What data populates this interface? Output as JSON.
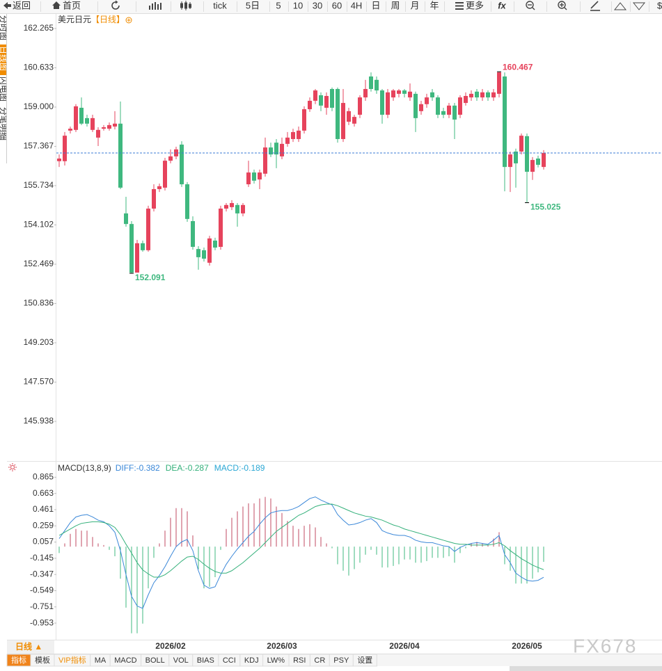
{
  "toolbar": {
    "back": "返回",
    "home": "首页",
    "tick": "tick",
    "periods": [
      "5日",
      "5",
      "10",
      "30",
      "60",
      "4H",
      "日",
      "周",
      "月",
      "年"
    ],
    "more": "更多",
    "fx": "fx",
    "currency": "$"
  },
  "side_tabs": [
    "分时图",
    "日线图",
    "闪电图",
    "分笔明细"
  ],
  "chart_data": [
    {
      "type": "candlestick",
      "title": "美元日元",
      "period": "【日线】",
      "up_color": "#e6435c",
      "down_color": "#3fb87f",
      "current_line_color": "#3a7bd5",
      "categories": [
        null,
        null,
        null,
        null,
        null,
        null,
        null,
        null,
        null,
        null,
        null,
        null,
        null,
        null,
        null,
        null,
        null,
        null,
        null,
        null,
        "2026/02",
        null,
        null,
        null,
        null,
        null,
        null,
        null,
        null,
        null,
        null,
        null,
        null,
        null,
        null,
        null,
        null,
        null,
        null,
        null,
        "2026/03",
        null,
        null,
        null,
        null,
        null,
        null,
        null,
        null,
        null,
        null,
        null,
        null,
        null,
        null,
        null,
        null,
        null,
        null,
        null,
        null,
        null,
        "2026/04",
        null,
        null,
        null,
        null,
        null,
        null,
        null,
        null,
        null,
        null,
        null,
        null,
        null,
        null,
        null,
        null,
        null,
        null,
        null,
        null,
        null,
        "2026/05",
        null,
        null,
        null
      ],
      "open": [
        156.75,
        156.75,
        158.02,
        158.05,
        158.97,
        158.54,
        158.05,
        157.73,
        158.1,
        158.1,
        158.19,
        158.31,
        154.58,
        154.14,
        152.12,
        153.34,
        153.05,
        154.78,
        155.59,
        155.65,
        156.77,
        156.95,
        157.44,
        155.79,
        154.26,
        153.1,
        153.05,
        152.53,
        153.45,
        153.19,
        154.78,
        154.84,
        154.93,
        154.58,
        155.79,
        156.28,
        155.99,
        156.23,
        157.32,
        157.52,
        156.95,
        157.47,
        157.67,
        157.67,
        158.02,
        158.91,
        159.26,
        159.49,
        158.97,
        159.75,
        159.75,
        157.67,
        158.39,
        158.31,
        158.68,
        159.4,
        160.27,
        160.13,
        159.69,
        158.68,
        159.4,
        159.55,
        159.69,
        159.4,
        159.55,
        158.83,
        159.12,
        159.61,
        159.4,
        158.83,
        158.68,
        159.06,
        158.68,
        159.17,
        159.4,
        159.64,
        159.4,
        159.61,
        159.4,
        159.55,
        160.27,
        156.51,
        157.15,
        157.15,
        157.79,
        156.31,
        156.86,
        156.51
      ],
      "high": [
        157.03,
        157.96,
        158.19,
        159.12,
        159.4,
        158.68,
        158.68,
        158.16,
        158.25,
        158.36,
        158.83,
        159.23,
        155.27,
        154.26,
        153.48,
        153.45,
        154.9,
        155.79,
        155.82,
        156.89,
        157.24,
        157.35,
        157.58,
        155.88,
        154.46,
        153.22,
        153.16,
        153.65,
        153.57,
        154.9,
        155.01,
        155.13,
        155.01,
        155.01,
        156.77,
        156.4,
        156.4,
        157.73,
        157.52,
        157.67,
        157.73,
        157.96,
        158.1,
        158.19,
        159.03,
        159.4,
        159.75,
        159.61,
        159.61,
        159.81,
        159.81,
        159.75,
        158.97,
        158.68,
        159.49,
        160.13,
        160.44,
        160.27,
        159.75,
        159.75,
        159.75,
        159.75,
        159.75,
        159.98,
        159.64,
        159.26,
        159.55,
        159.75,
        159.49,
        158.97,
        159.17,
        159.17,
        159.49,
        159.61,
        159.69,
        159.75,
        159.75,
        159.69,
        159.75,
        160.467,
        160.44,
        157.15,
        157.27,
        157.9,
        157.9,
        156.92,
        156.98,
        157.21
      ],
      "low": [
        156.51,
        156.57,
        157.9,
        157.96,
        158.25,
        158.19,
        157.96,
        157.38,
        158.02,
        158.02,
        158.07,
        155.59,
        154.03,
        152.091,
        152.12,
        152.99,
        152.99,
        154.66,
        155.47,
        155.53,
        156.66,
        156.83,
        155.68,
        154.23,
        153.07,
        152.24,
        152.58,
        152.41,
        153.05,
        153.07,
        154.66,
        154.72,
        154.03,
        154.46,
        155.68,
        155.82,
        155.59,
        156.11,
        156.92,
        156.46,
        156.83,
        157.35,
        157.55,
        157.55,
        157.9,
        158.8,
        159.12,
        158.83,
        158.68,
        158.83,
        157.52,
        157.55,
        158.25,
        158.19,
        158.54,
        159.26,
        159.64,
        159.55,
        158.31,
        158.54,
        159.26,
        159.4,
        159.4,
        159.26,
        157.96,
        158.68,
        158.97,
        159.26,
        158.54,
        158.54,
        158.54,
        157.67,
        158.54,
        159.06,
        159.26,
        159.26,
        159.26,
        159.26,
        159.26,
        159.4,
        155.5,
        155.47,
        155.65,
        157.03,
        155.025,
        155.97,
        156.49,
        156.4
      ],
      "close": [
        156.86,
        157.81,
        158.1,
        159.03,
        158.31,
        158.31,
        158.54,
        158.05,
        158.16,
        158.25,
        158.31,
        155.65,
        154.14,
        152.12,
        153.34,
        153.05,
        154.78,
        155.59,
        155.71,
        156.77,
        156.95,
        157.24,
        155.79,
        154.35,
        153.19,
        152.76,
        152.7,
        153.54,
        153.16,
        154.78,
        154.93,
        155.01,
        154.58,
        154.93,
        156.28,
        155.94,
        156.28,
        157.32,
        157.03,
        157.03,
        157.47,
        157.73,
        157.96,
        158.02,
        158.91,
        159.26,
        159.69,
        159.06,
        159.46,
        158.97,
        157.67,
        159.17,
        158.83,
        158.59,
        159.4,
        159.75,
        159.75,
        159.69,
        158.68,
        159.61,
        159.69,
        159.69,
        159.55,
        159.64,
        158.54,
        159.12,
        159.4,
        159.4,
        158.68,
        158.68,
        159.06,
        158.48,
        159.4,
        159.46,
        159.55,
        159.4,
        159.61,
        159.4,
        159.61,
        160.44,
        156.51,
        157.03,
        156.66,
        157.81,
        156.31,
        156.8,
        156.6,
        157.09
      ],
      "ylim": [
        144.32,
        162.87
      ],
      "yticks": [
        162.265,
        160.633,
        {
          "value": 159,
          "label": "159.000"
        },
        157.367,
        155.734,
        154.102,
        152.469,
        150.836,
        149.203,
        {
          "value": 147.57,
          "label": "147.570"
        },
        145.938
      ]
    },
    {
      "type": "macd",
      "title": "MACD(13,8,9)",
      "series": [
        {
          "name": "DIFF:",
          "color": "#3a87d8",
          "values": [
            0.1,
            0.2,
            0.3,
            0.37,
            0.39,
            0.4,
            0.37,
            0.33,
            0.31,
            0.26,
            0.18,
            -0.05,
            -0.35,
            -0.62,
            -0.74,
            -0.77,
            -0.6,
            -0.45,
            -0.36,
            -0.25,
            -0.12,
            0.0,
            0.06,
            0.09,
            -0.05,
            -0.3,
            -0.48,
            -0.52,
            -0.5,
            -0.35,
            -0.22,
            -0.12,
            -0.03,
            0.05,
            0.13,
            0.19,
            0.28,
            0.36,
            0.42,
            0.44,
            0.45,
            0.45,
            0.47,
            0.5,
            0.55,
            0.6,
            0.62,
            0.58,
            0.55,
            0.52,
            0.4,
            0.33,
            0.27,
            0.28,
            0.3,
            0.33,
            0.35,
            0.3,
            0.2,
            0.17,
            0.15,
            0.14,
            0.14,
            0.12,
            0.08,
            0.06,
            0.05,
            0.05,
            0.03,
            0.01,
            0.0,
            -0.06,
            -0.01,
            0.02,
            0.04,
            0.05,
            0.04,
            0.03,
            0.08,
            0.14,
            -0.1,
            -0.2,
            -0.33,
            -0.38,
            -0.42,
            -0.43,
            -0.42,
            -0.382
          ]
        },
        {
          "name": "DEA:",
          "color": "#33b07a",
          "values": [
            0.14,
            0.18,
            0.22,
            0.26,
            0.29,
            0.3,
            0.31,
            0.31,
            0.3,
            0.28,
            0.24,
            0.15,
            0.03,
            -0.08,
            -0.2,
            -0.29,
            -0.34,
            -0.38,
            -0.38,
            -0.35,
            -0.3,
            -0.24,
            -0.18,
            -0.13,
            -0.12,
            -0.16,
            -0.22,
            -0.27,
            -0.31,
            -0.33,
            -0.33,
            -0.3,
            -0.25,
            -0.2,
            -0.14,
            -0.08,
            -0.02,
            0.05,
            0.12,
            0.19,
            0.24,
            0.29,
            0.34,
            0.39,
            0.42,
            0.46,
            0.5,
            0.52,
            0.53,
            0.53,
            0.51,
            0.48,
            0.45,
            0.42,
            0.4,
            0.38,
            0.37,
            0.35,
            0.33,
            0.3,
            0.27,
            0.25,
            0.22,
            0.2,
            0.18,
            0.16,
            0.14,
            0.12,
            0.1,
            0.08,
            0.06,
            0.04,
            0.03,
            0.03,
            0.02,
            0.02,
            0.02,
            0.02,
            0.03,
            0.05,
            0.01,
            -0.05,
            -0.1,
            -0.15,
            -0.19,
            -0.23,
            -0.26,
            -0.287
          ]
        }
      ],
      "histogram": {
        "name": "MACD:",
        "color": "#2aa7d4",
        "up_color": "#c24a62",
        "down_color": "#3fb87f",
        "values": [
          -0.08,
          0.04,
          0.16,
          0.22,
          0.2,
          0.2,
          0.12,
          0.04,
          0.02,
          -0.04,
          -0.12,
          -0.4,
          -0.76,
          -1.08,
          -1.08,
          -0.96,
          -0.52,
          -0.14,
          0.04,
          0.2,
          0.36,
          0.48,
          0.48,
          0.44,
          0.14,
          -0.28,
          -0.52,
          -0.5,
          -0.38,
          -0.04,
          0.22,
          0.36,
          0.44,
          0.5,
          0.54,
          0.54,
          0.6,
          0.62,
          0.6,
          0.5,
          0.42,
          0.32,
          0.26,
          0.22,
          0.26,
          0.28,
          0.24,
          0.12,
          0.04,
          -0.02,
          -0.22,
          -0.3,
          -0.36,
          -0.28,
          -0.2,
          -0.1,
          -0.04,
          -0.1,
          -0.26,
          -0.26,
          -0.24,
          -0.22,
          -0.16,
          -0.16,
          -0.2,
          -0.2,
          -0.18,
          -0.14,
          -0.14,
          -0.14,
          -0.12,
          -0.2,
          -0.08,
          -0.02,
          0.04,
          0.06,
          0.04,
          0.02,
          0.1,
          0.18,
          -0.22,
          -0.3,
          -0.46,
          -0.46,
          -0.46,
          -0.4,
          -0.32,
          -0.189
        ]
      },
      "ylim": [
        -1.16,
        1.05
      ],
      "yticks": [
        0.865,
        0.663,
        0.461,
        0.259,
        0.057,
        -0.145,
        -0.347,
        -0.549,
        -0.751,
        -0.953
      ]
    }
  ],
  "period_button": "日线 ▲",
  "indicator_tabs": [
    "指标",
    "模板",
    "VIP指标",
    "MA",
    "MACD",
    "BOLL",
    "VOL",
    "BIAS",
    "CCI",
    "KDJ",
    "LW%",
    "RSI",
    "CR",
    "PSY",
    "设置"
  ],
  "watermark": "FX678"
}
